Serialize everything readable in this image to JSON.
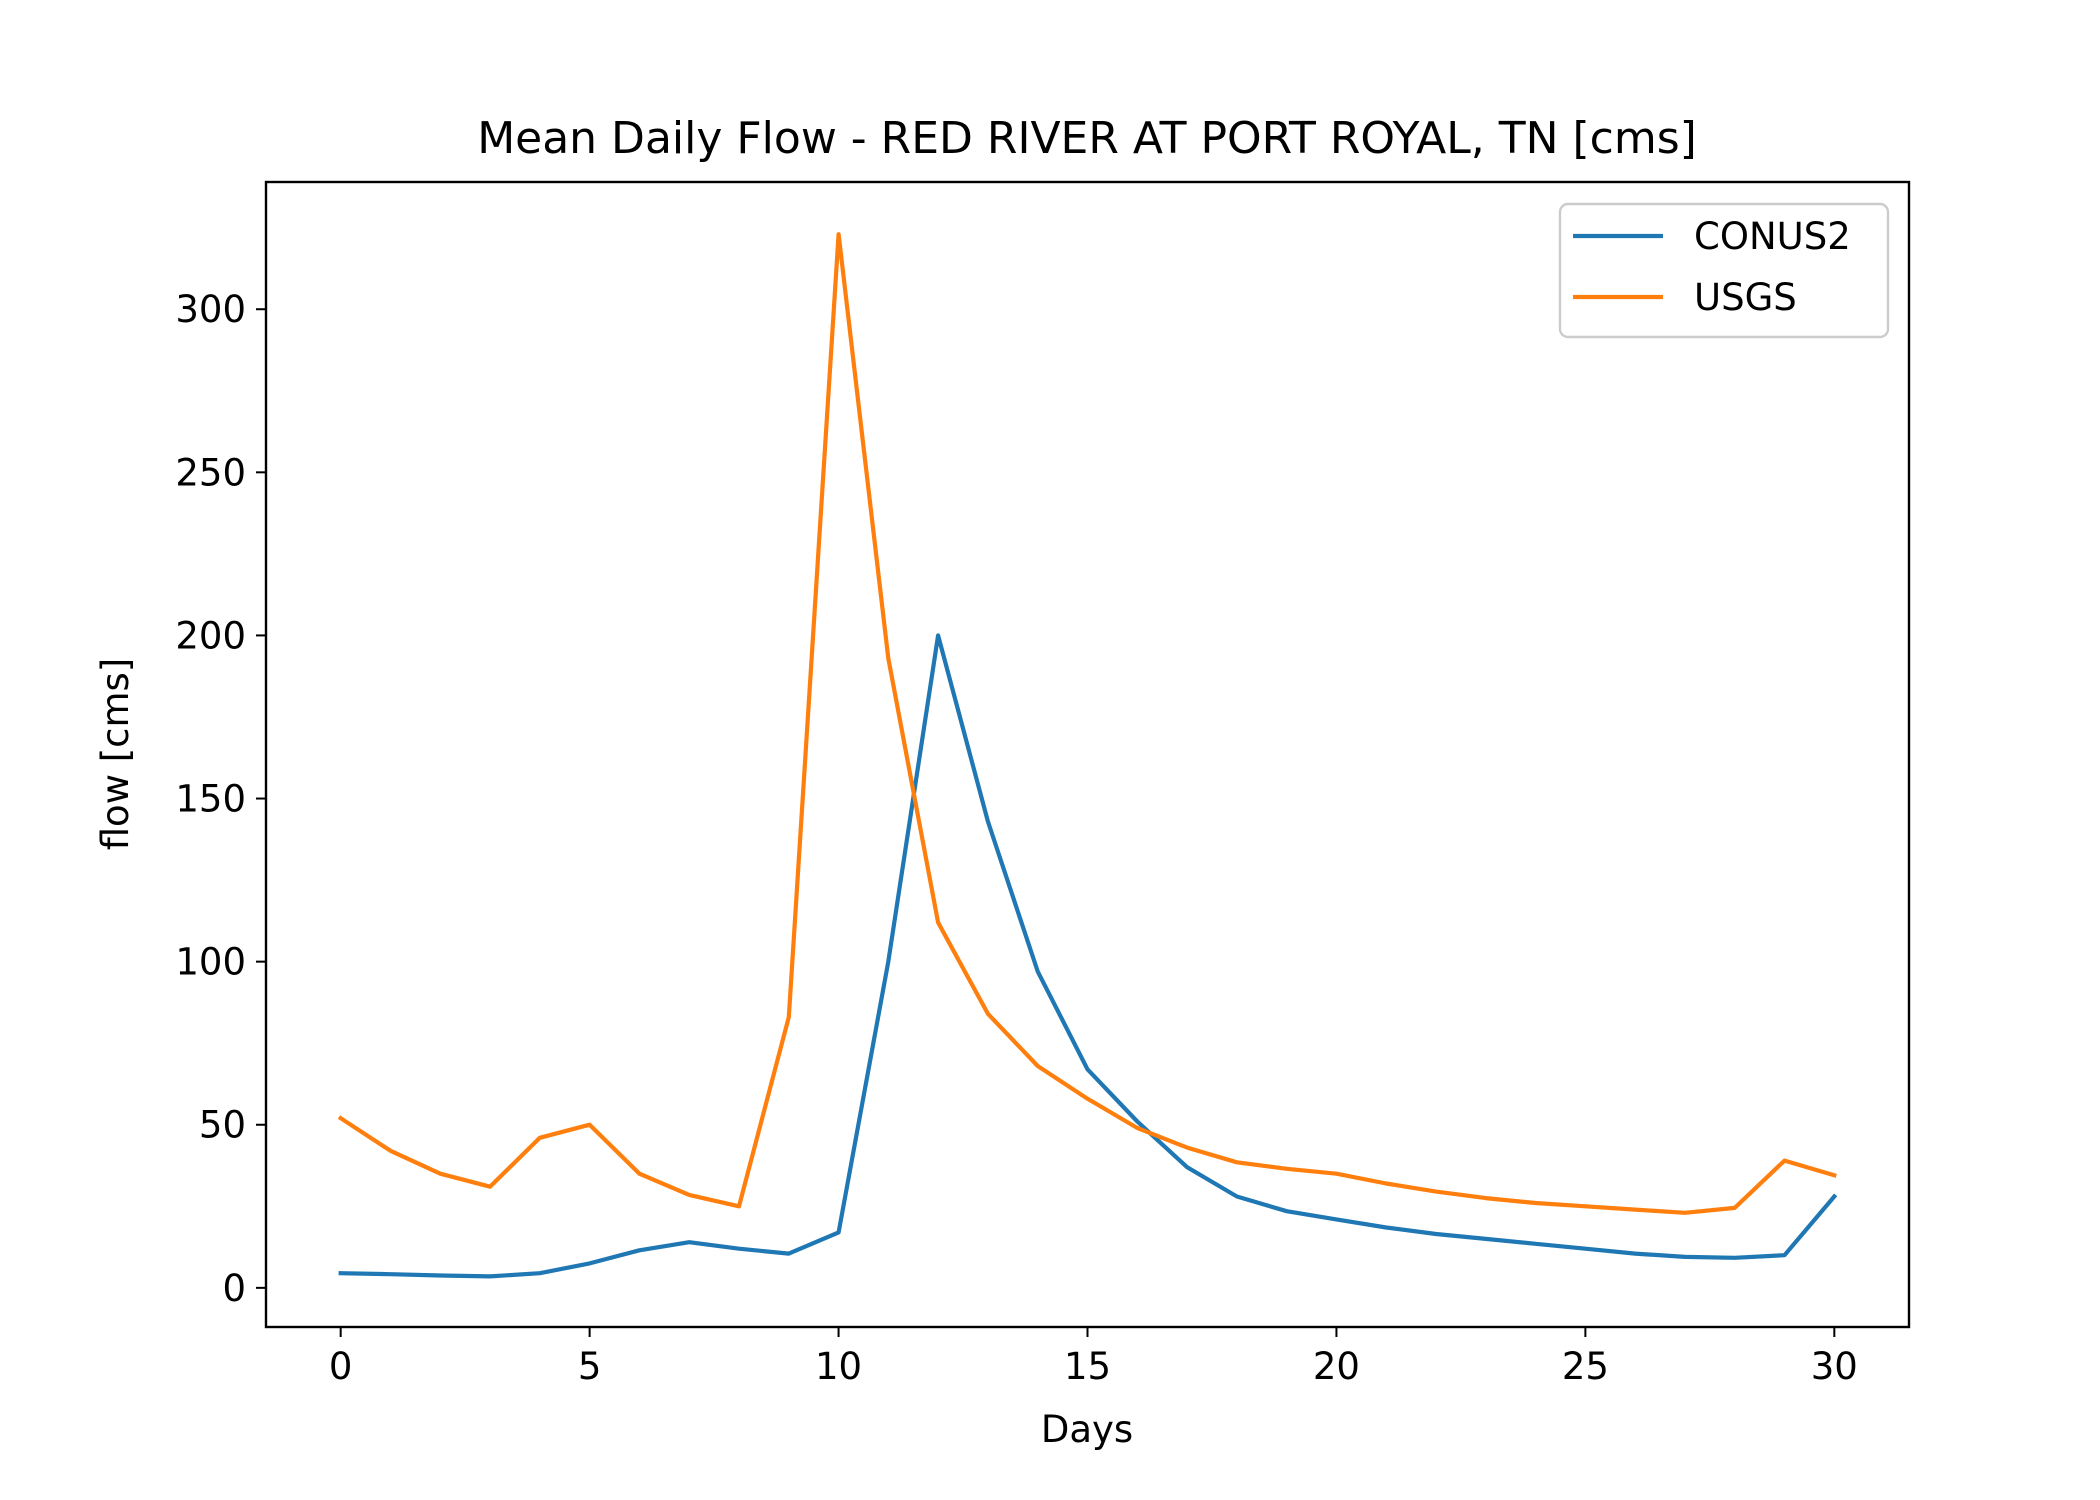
{
  "chart_data": {
    "type": "line",
    "title": "Mean Daily Flow - RED RIVER AT PORT ROYAL, TN [cms]",
    "xlabel": "Days",
    "ylabel": "flow [cms]",
    "xlim": [
      -1.5,
      31.5
    ],
    "ylim": [
      -12,
      339
    ],
    "xticks": [
      0,
      5,
      10,
      15,
      20,
      25,
      30
    ],
    "yticks": [
      0,
      50,
      100,
      150,
      200,
      250,
      300
    ],
    "grid": false,
    "legend_position": "top-right",
    "x": [
      0,
      1,
      2,
      3,
      4,
      5,
      6,
      7,
      8,
      9,
      10,
      11,
      12,
      13,
      14,
      15,
      16,
      17,
      18,
      19,
      20,
      21,
      22,
      23,
      24,
      25,
      26,
      27,
      28,
      29,
      30
    ],
    "series": [
      {
        "name": "CONUS2",
        "color": "#1f77b4",
        "values": [
          4.5,
          4.2,
          3.8,
          3.5,
          4.5,
          7.5,
          11.5,
          14,
          12,
          10.5,
          17,
          100,
          200,
          143,
          97,
          67,
          51,
          37,
          28,
          23.5,
          21,
          18.5,
          16.5,
          15,
          13.5,
          12,
          10.5,
          9.5,
          9.2,
          10,
          28
        ]
      },
      {
        "name": "USGS",
        "color": "#ff7f0e",
        "values": [
          52,
          42,
          35,
          31,
          46,
          50,
          35,
          28.5,
          25,
          83,
          323,
          193,
          112,
          84,
          68,
          58,
          49,
          43,
          38.5,
          36.5,
          35,
          32,
          29.5,
          27.5,
          26,
          25,
          24,
          23,
          24.5,
          39,
          34.5
        ]
      }
    ]
  }
}
